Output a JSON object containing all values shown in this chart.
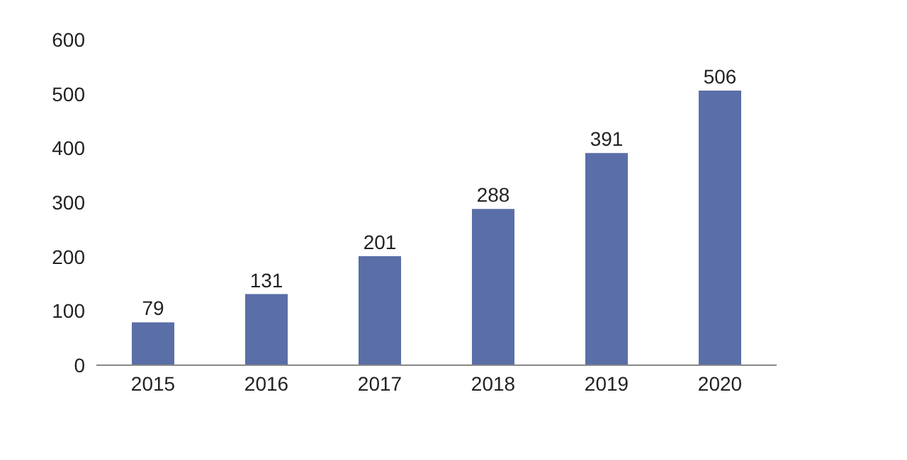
{
  "chart_data": {
    "type": "bar",
    "categories": [
      "2015",
      "2016",
      "2017",
      "2018",
      "2019",
      "2020"
    ],
    "values": [
      79,
      131,
      201,
      288,
      391,
      506
    ],
    "color": "#5a6ea8",
    "ylim": [
      0,
      600
    ],
    "yticks": [
      0,
      100,
      200,
      300,
      400,
      500,
      600
    ],
    "grid": false,
    "data_labels": true
  }
}
